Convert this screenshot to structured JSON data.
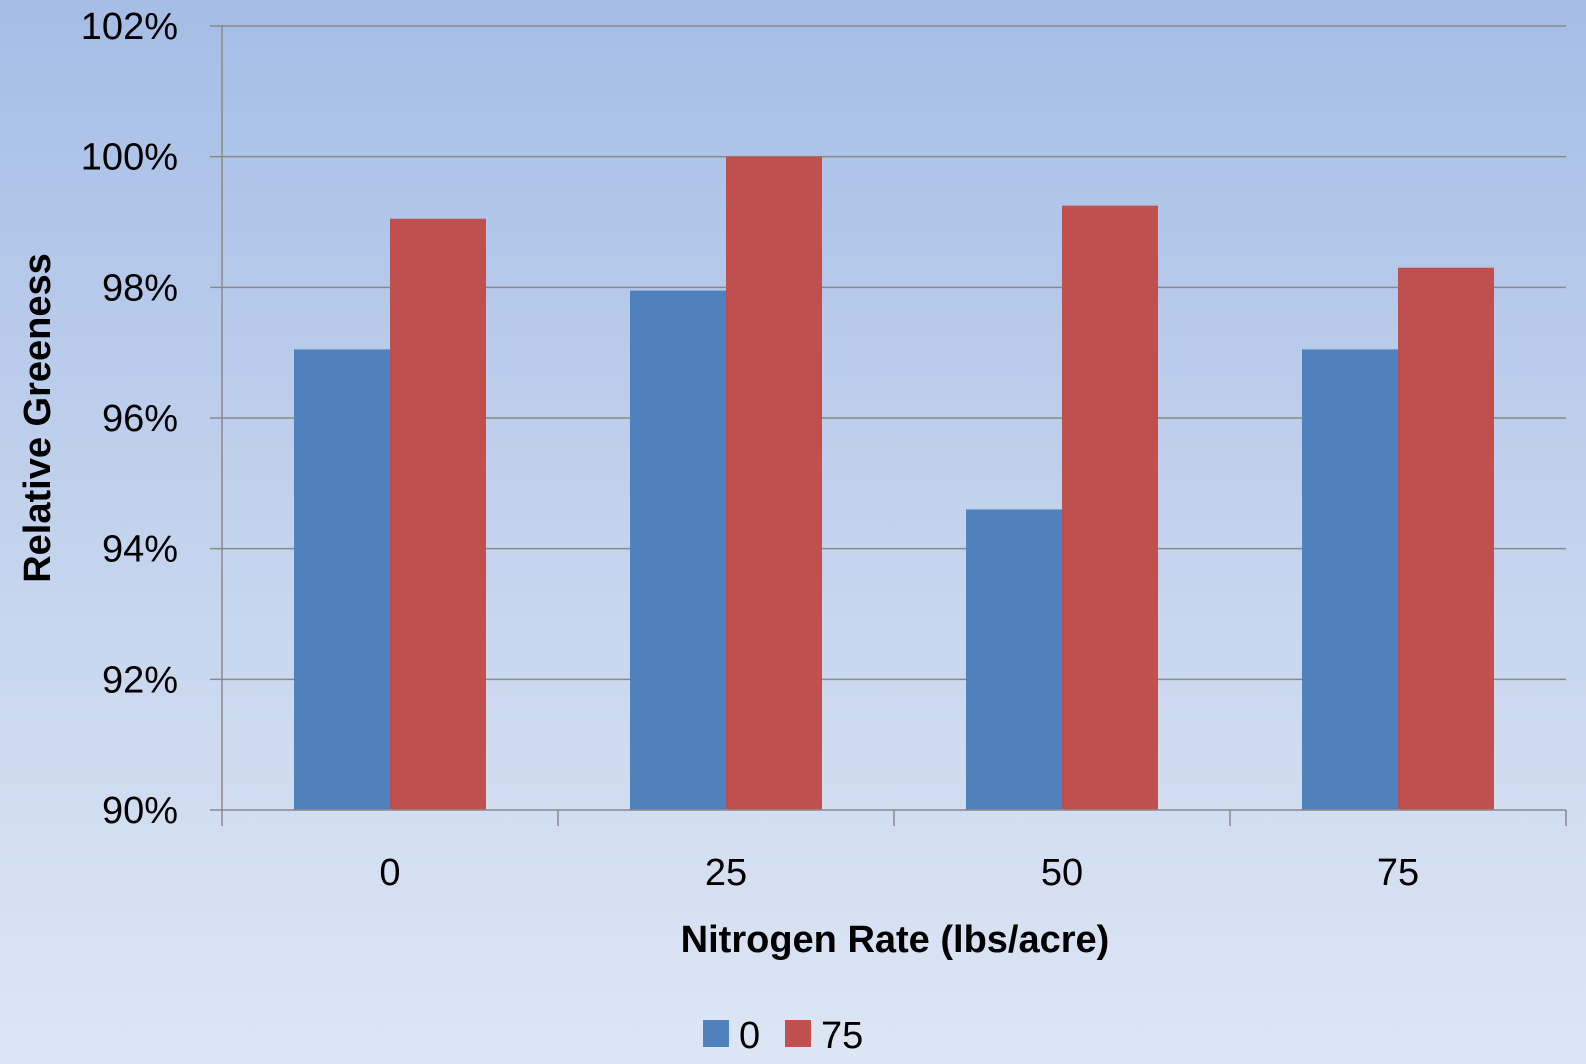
{
  "chart_data": {
    "type": "bar",
    "categories": [
      "0",
      "25",
      "50",
      "75"
    ],
    "series": [
      {
        "name": "0",
        "color": "#4f81bd",
        "values": [
          97.05,
          97.95,
          94.6,
          97.05
        ]
      },
      {
        "name": "75",
        "color": "#c0504d",
        "values": [
          99.05,
          100.0,
          99.25,
          98.3
        ]
      }
    ],
    "xlabel": "Nitrogen Rate (lbs/acre)",
    "ylabel": "Relative Greeness",
    "ylim": [
      90,
      102
    ],
    "yticks": [
      "90%",
      "92%",
      "94%",
      "96%",
      "98%",
      "100%",
      "102%"
    ],
    "grid": true,
    "legend_position": "bottom",
    "colors": {
      "gridline": "#8a8a8a",
      "axis": "#8a8a8a"
    }
  }
}
